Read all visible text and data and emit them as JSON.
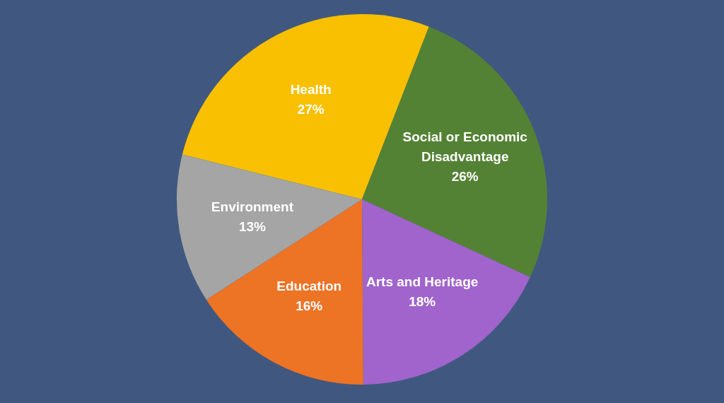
{
  "chart_data": {
    "type": "pie",
    "categories": [
      "Health",
      "Social or Economic Disadvantage",
      "Arts and Heritage",
      "Education",
      "Environment"
    ],
    "values": [
      27,
      26,
      18,
      16,
      13
    ],
    "colors": [
      "#f8c000",
      "#548235",
      "#a064cc",
      "#ed7325",
      "#a5a5a5"
    ],
    "value_labels": [
      "27%",
      "26%",
      "18%",
      "16%",
      "13%"
    ]
  }
}
